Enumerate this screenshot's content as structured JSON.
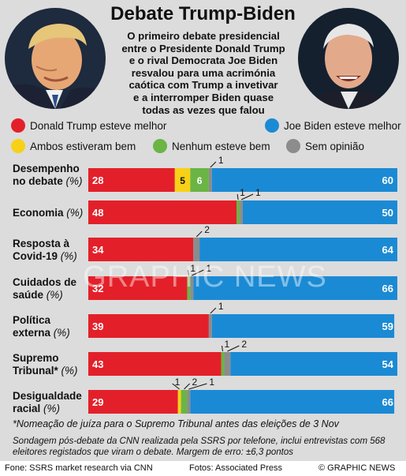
{
  "title": "Debate Trump-Biden",
  "intro": [
    "O primeiro debate presidencial",
    "entre o Presidente Donald Trump",
    "e o rival Democrata Joe Biden",
    "resvalou para uma acrimónia",
    "caótica com Trump a invetivar",
    "e a interromper Biden quase",
    "todas as vezes que falou"
  ],
  "legend": {
    "trump": "Donald Trump esteve melhor",
    "biden": "Joe Biden esteve melhor",
    "both": "Ambos estiveram bem",
    "neither": "Nenhum esteve bem",
    "none": "Sem opinião"
  },
  "colors": {
    "trump": "#e3202a",
    "both": "#f7d117",
    "neither": "#6ab545",
    "none": "#8c8c8c",
    "biden": "#1b8ad4"
  },
  "unit": "(%)",
  "chart_data": {
    "type": "bar",
    "stacked": true,
    "orientation": "horizontal",
    "categories": [
      [
        "Desempenho",
        "no debate"
      ],
      [
        "Economia"
      ],
      [
        "Resposta à",
        "Covid-19"
      ],
      [
        "Cuidados de",
        "saúde"
      ],
      [
        "Política",
        "externa"
      ],
      [
        "Supremo",
        "Tribunal*"
      ],
      [
        "Desigualdade",
        "racial"
      ]
    ],
    "series": [
      {
        "name": "Donald Trump esteve melhor",
        "key": "trump",
        "values": [
          28,
          48,
          34,
          32,
          39,
          43,
          29
        ]
      },
      {
        "name": "Ambos estiveram bem",
        "key": "both",
        "values": [
          5,
          0,
          0,
          0,
          0,
          0,
          1
        ]
      },
      {
        "name": "Nenhum esteve bem",
        "key": "neither",
        "values": [
          6,
          1,
          0,
          1,
          0,
          1,
          2
        ]
      },
      {
        "name": "Sem opinião",
        "key": "none",
        "values": [
          1,
          1,
          2,
          1,
          1,
          2,
          1
        ]
      },
      {
        "name": "Joe Biden esteve melhor",
        "key": "biden",
        "values": [
          60,
          50,
          64,
          66,
          59,
          54,
          66
        ]
      }
    ],
    "xlim": [
      0,
      100
    ]
  },
  "footnote": "*Nomeação de juíza para o Supremo Tribunal antes das eleições de 3 Nov",
  "note": "Sondagem pós-debate da CNN realizada pela SSRS por telefone, inclui entrevistas com 568 eleitores registados que viram o debate. Margem de erro: ±6,3 pontos",
  "watermark": "GRAPHIC NEWS",
  "footer": {
    "source": "Fone: SSRS market research via CNN",
    "photos": "Fotos: Associated Press",
    "copyright": "© GRAPHIC NEWS"
  }
}
